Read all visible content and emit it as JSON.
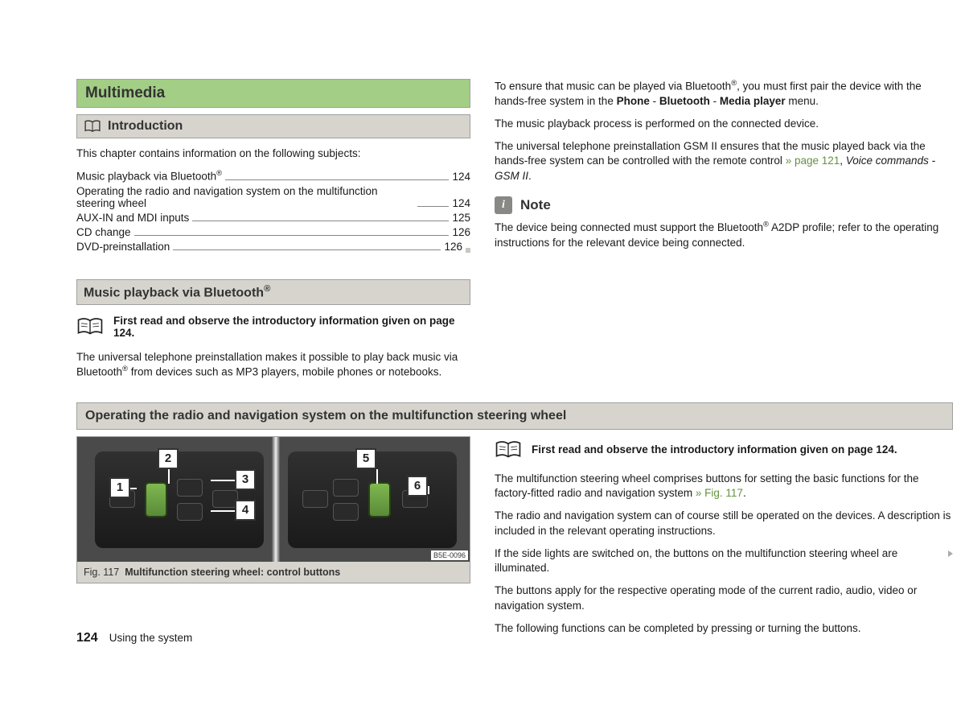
{
  "chapter_title": "Multimedia",
  "introduction": {
    "heading": "Introduction",
    "lead_text": "This chapter contains information on the following subjects:",
    "toc": [
      {
        "label_html": "Music playback via Bluetooth<sup>®</sup>",
        "page": "124"
      },
      {
        "label_html": "Operating the radio and navigation system on the multifunction steering wheel",
        "page": "124"
      },
      {
        "label_html": "AUX-IN and MDI inputs",
        "page": "125"
      },
      {
        "label_html": "CD change",
        "page": "126"
      },
      {
        "label_html": "DVD-preinstallation",
        "page": "126"
      }
    ]
  },
  "section_bluetooth": {
    "heading_html": "Music playback via Bluetooth<sup>®</sup>",
    "read_first": "First read and observe the introductory information given on page 124.",
    "body_html": "The universal telephone preinstallation makes it possible to play back music via Bluetooth<sup>®</sup> from devices such as MP3 players, mobile phones or notebooks."
  },
  "right_col": {
    "p1_html": "To ensure that music can be played via Bluetooth<sup>®</sup>, you must first pair the device with the hands-free system in the <b>Phone</b> - <b>Bluetooth</b> - <b>Media player</b> menu.",
    "p2": "The music playback process is performed on the connected device.",
    "p3_html": "The universal telephone preinstallation GSM II ensures that the music played back via the hands-free system can be controlled with the remote control <span class='ref-link'>» page 121</span>, <span class='italic'>Voice commands - GSM II</span>.",
    "note_title": "Note",
    "note_body_html": "The device being connected must support the Bluetooth<sup>®</sup> A2DP profile; refer to the operating instructions for the relevant device being connected."
  },
  "section_steering": {
    "heading": "Operating the radio and navigation system on the multifunction steering wheel",
    "read_first": "First read and observe the introductory information given on page 124.",
    "figure": {
      "ref": "B5E-0096",
      "number": "Fig. 117",
      "title": "Multifunction steering wheel: control buttons",
      "callouts": [
        "1",
        "2",
        "3",
        "4",
        "5",
        "6"
      ]
    },
    "paragraphs": [
      "The multifunction steering wheel comprises buttons for setting the basic functions for the factory-fitted radio and navigation system <span class='ref-link'>» Fig. 117</span>.",
      "The radio and navigation system can of course still be operated on the devices. A description is included in the relevant operating instructions.",
      "If the side lights are switched on, the buttons on the multifunction steering wheel are illuminated.",
      "The buttons apply for the respective operating mode of the current radio, audio, video or navigation system.",
      "The following functions can be completed by pressing or turning the buttons."
    ]
  },
  "footer": {
    "page": "124",
    "section": "Using the system"
  },
  "colors": {
    "green_header_bg": "#a3ce85",
    "gray_header_bg": "#d6d4cd",
    "ref_green": "#66923f"
  }
}
